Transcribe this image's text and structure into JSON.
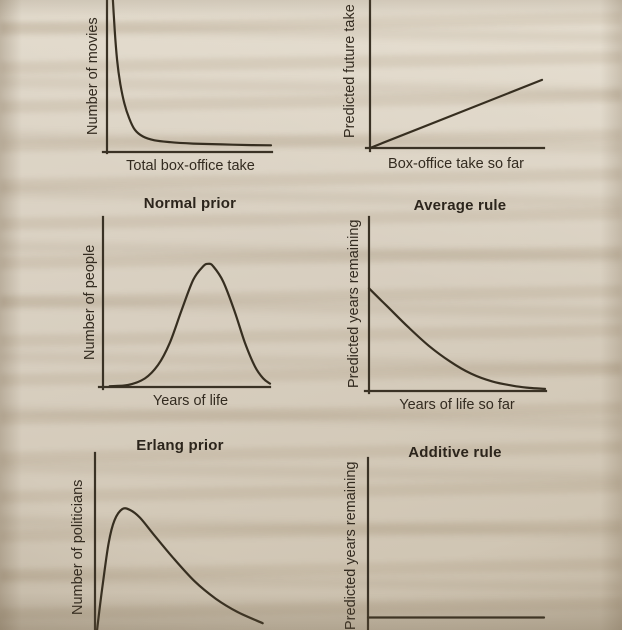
{
  "page": {
    "kind": "photographed book page with six statistical sketch charts",
    "paper_color": "#d8cfc0",
    "ink_color": "#362e20"
  },
  "chart_data": [
    {
      "id": "top-left",
      "type": "line",
      "shape": "steep decay with long flat tail (power-law prior)",
      "title": "",
      "xlabel": "Total box-office take",
      "ylabel": "Number of movies",
      "ticks": "none",
      "grid": false,
      "cropped_edges": [
        "top"
      ],
      "x_range": [
        0,
        1
      ],
      "y_range": [
        0,
        1
      ],
      "points": [
        [
          0.02,
          1.08
        ],
        [
          0.035,
          0.8
        ],
        [
          0.05,
          0.6
        ],
        [
          0.07,
          0.44
        ],
        [
          0.095,
          0.31
        ],
        [
          0.125,
          0.21
        ],
        [
          0.16,
          0.135
        ],
        [
          0.21,
          0.09
        ],
        [
          0.28,
          0.065
        ],
        [
          0.38,
          0.052
        ],
        [
          0.52,
          0.043
        ],
        [
          0.7,
          0.037
        ],
        [
          0.88,
          0.033
        ],
        [
          1.0,
          0.031
        ]
      ]
    },
    {
      "id": "top-right",
      "type": "line",
      "shape": "straight rising line from the origin (multiplicative prediction)",
      "title": "",
      "xlabel": "Box-office take so far",
      "ylabel": "Predicted future take",
      "ticks": "none",
      "grid": false,
      "cropped_edges": [
        "top"
      ],
      "x_range": [
        0,
        1
      ],
      "y_range": [
        0,
        1
      ],
      "points": [
        [
          0.0,
          0.0
        ],
        [
          1.0,
          0.46
        ]
      ]
    },
    {
      "id": "middle-left",
      "type": "line",
      "shape": "symmetric bell curve peaked right of center",
      "title": "Normal prior",
      "xlabel": "Years of life",
      "ylabel": "Number of people",
      "ticks": "none",
      "grid": false,
      "cropped_edges": [],
      "x_range": [
        0,
        1
      ],
      "y_range": [
        0,
        1
      ],
      "points": [
        [
          0.04,
          0.005
        ],
        [
          0.15,
          0.012
        ],
        [
          0.25,
          0.05
        ],
        [
          0.33,
          0.13
        ],
        [
          0.4,
          0.26
        ],
        [
          0.47,
          0.45
        ],
        [
          0.54,
          0.63
        ],
        [
          0.6,
          0.71
        ],
        [
          0.63,
          0.725
        ],
        [
          0.66,
          0.71
        ],
        [
          0.72,
          0.62
        ],
        [
          0.79,
          0.44
        ],
        [
          0.85,
          0.26
        ],
        [
          0.91,
          0.12
        ],
        [
          0.96,
          0.05
        ],
        [
          1.0,
          0.02
        ]
      ]
    },
    {
      "id": "middle-right",
      "type": "line",
      "shape": "convex decreasing curve approaching zero",
      "title": "Average rule",
      "xlabel": "Years of life so far",
      "ylabel": "Predicted years remaining",
      "ticks": "none",
      "grid": false,
      "cropped_edges": [],
      "x_range": [
        0,
        1
      ],
      "y_range": [
        0,
        1
      ],
      "points": [
        [
          0.0,
          0.59
        ],
        [
          0.1,
          0.49
        ],
        [
          0.22,
          0.37
        ],
        [
          0.34,
          0.26
        ],
        [
          0.46,
          0.17
        ],
        [
          0.58,
          0.1
        ],
        [
          0.7,
          0.055
        ],
        [
          0.82,
          0.03
        ],
        [
          0.91,
          0.018
        ],
        [
          1.0,
          0.012
        ]
      ]
    },
    {
      "id": "bottom-left",
      "type": "line",
      "shape": "right-skewed hump: fast rise, slow decay (Erlang distribution)",
      "title": "Erlang prior",
      "xlabel": "",
      "ylabel": "Number of politicians",
      "ticks": "none",
      "grid": false,
      "cropped_edges": [
        "bottom"
      ],
      "x_range": [
        0,
        1
      ],
      "y_range": [
        0,
        1
      ],
      "points": [
        [
          0.01,
          0.05
        ],
        [
          0.04,
          0.3
        ],
        [
          0.07,
          0.52
        ],
        [
          0.1,
          0.64
        ],
        [
          0.14,
          0.7
        ],
        [
          0.18,
          0.695
        ],
        [
          0.23,
          0.655
        ],
        [
          0.3,
          0.565
        ],
        [
          0.4,
          0.44
        ],
        [
          0.51,
          0.315
        ],
        [
          0.62,
          0.22
        ],
        [
          0.73,
          0.15
        ],
        [
          0.86,
          0.09
        ]
      ]
    },
    {
      "id": "bottom-right",
      "type": "line",
      "shape": "flat horizontal line (constant prediction)",
      "title": "Additive rule",
      "xlabel": "",
      "ylabel": "Predicted years remaining",
      "ticks": "none",
      "grid": false,
      "cropped_edges": [
        "bottom"
      ],
      "x_range": [
        0,
        1
      ],
      "y_range": [
        0,
        1
      ],
      "points": [
        [
          0.0,
          0.115
        ],
        [
          1.0,
          0.115
        ]
      ]
    }
  ]
}
